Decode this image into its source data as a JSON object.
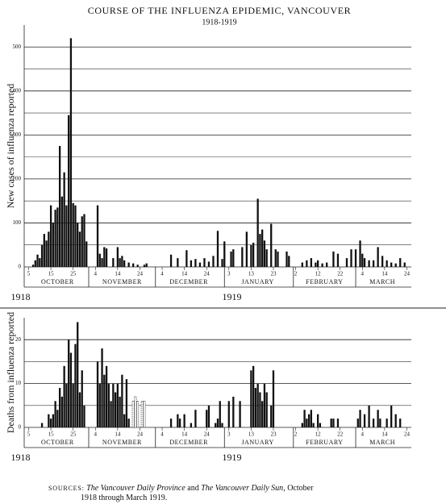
{
  "chart_data": [
    {
      "type": "bar",
      "title": "COURSE OF THE INFLUENZA EPIDEMIC, VANCOUVER",
      "subtitle": "1918-1919",
      "y_label": "New cases of influenza reported",
      "xlim": [
        -2,
        172
      ],
      "xticks": [
        {
          "value": 0,
          "label": "5"
        },
        {
          "value": 10,
          "label": "15"
        },
        {
          "value": 20,
          "label": "25"
        },
        {
          "value": 30,
          "label": "4"
        },
        {
          "value": 40,
          "label": "14"
        },
        {
          "value": 50,
          "label": "24"
        },
        {
          "value": 60,
          "label": "4"
        },
        {
          "value": 70,
          "label": "14"
        },
        {
          "value": 80,
          "label": "24"
        },
        {
          "value": 90,
          "label": "3"
        },
        {
          "value": 100,
          "label": "13"
        },
        {
          "value": 110,
          "label": "23"
        },
        {
          "value": 120,
          "label": "2"
        },
        {
          "value": 130,
          "label": "12"
        },
        {
          "value": 140,
          "label": "22"
        },
        {
          "value": 150,
          "label": "4"
        },
        {
          "value": 160,
          "label": "14"
        },
        {
          "value": 170,
          "label": "24"
        }
      ],
      "month_starts": [
        27,
        57,
        88,
        119,
        147
      ],
      "months": [
        {
          "value": 13,
          "label": "OCTOBER"
        },
        {
          "value": 42,
          "label": "NOVEMBER"
        },
        {
          "value": 72,
          "label": "DECEMBER"
        },
        {
          "value": 103,
          "label": "JANUARY"
        },
        {
          "value": 133,
          "label": "FEBRUARY"
        },
        {
          "value": 159,
          "label": "MARCH"
        }
      ],
      "years": [
        {
          "value": -8,
          "label": "1918"
        },
        {
          "value": 87,
          "label": "1919"
        }
      ],
      "ylim": [
        0,
        550
      ],
      "yticks": [
        0,
        100,
        200,
        300,
        400,
        500
      ],
      "minor_grid": [
        50,
        150,
        250,
        350,
        450
      ],
      "grid": true,
      "series": [
        {
          "color": "#111111",
          "x": [
            2,
            3,
            4,
            5,
            6,
            7,
            8,
            9,
            10,
            11,
            12,
            13,
            14,
            15,
            16,
            17,
            18,
            19,
            20,
            21,
            22,
            23,
            24,
            25,
            26,
            31,
            32,
            33,
            34,
            35,
            38,
            40,
            41,
            42,
            43,
            45,
            47,
            49,
            52,
            53,
            64,
            67,
            71,
            73,
            75,
            77,
            79,
            81,
            83,
            85,
            87,
            88,
            91,
            92,
            96,
            98,
            100,
            101,
            103,
            104,
            105,
            106,
            107,
            109,
            111,
            112,
            116,
            117,
            123,
            125,
            127,
            129,
            130,
            132,
            134,
            137,
            139,
            143,
            145,
            147,
            149,
            150,
            151,
            153,
            155,
            157,
            159,
            161,
            163,
            165,
            167,
            169
          ],
          "values": [
            5,
            15,
            28,
            20,
            50,
            75,
            60,
            80,
            140,
            100,
            130,
            135,
            275,
            160,
            215,
            140,
            345,
            520,
            145,
            140,
            100,
            80,
            115,
            120,
            58,
            140,
            30,
            20,
            45,
            42,
            20,
            45,
            20,
            25,
            15,
            10,
            8,
            5,
            5,
            8,
            28,
            20,
            38,
            15,
            18,
            10,
            20,
            12,
            25,
            82,
            18,
            58,
            35,
            40,
            45,
            80,
            50,
            55,
            155,
            75,
            85,
            60,
            40,
            98,
            40,
            35,
            35,
            25,
            10,
            15,
            20,
            10,
            15,
            8,
            10,
            35,
            30,
            20,
            40,
            40,
            60,
            30,
            20,
            15,
            15,
            45,
            25,
            15,
            10,
            8,
            20,
            10
          ]
        }
      ]
    },
    {
      "type": "bar",
      "y_label": "Deaths from influenza reported",
      "xlim": [
        -2,
        172
      ],
      "xticks": [
        {
          "value": 0,
          "label": "5"
        },
        {
          "value": 10,
          "label": "15"
        },
        {
          "value": 20,
          "label": "25"
        },
        {
          "value": 30,
          "label": "4"
        },
        {
          "value": 40,
          "label": "14"
        },
        {
          "value": 50,
          "label": "24"
        },
        {
          "value": 60,
          "label": "4"
        },
        {
          "value": 70,
          "label": "14"
        },
        {
          "value": 80,
          "label": "24"
        },
        {
          "value": 90,
          "label": "3"
        },
        {
          "value": 100,
          "label": "13"
        },
        {
          "value": 110,
          "label": "23"
        },
        {
          "value": 120,
          "label": "2"
        },
        {
          "value": 130,
          "label": "12"
        },
        {
          "value": 140,
          "label": "22"
        },
        {
          "value": 150,
          "label": "4"
        },
        {
          "value": 160,
          "label": "14"
        },
        {
          "value": 170,
          "label": "24"
        }
      ],
      "month_starts": [
        27,
        57,
        88,
        119,
        147
      ],
      "months": [
        {
          "value": 13,
          "label": "OCTOBER"
        },
        {
          "value": 42,
          "label": "NOVEMBER"
        },
        {
          "value": 72,
          "label": "DECEMBER"
        },
        {
          "value": 103,
          "label": "JANUARY"
        },
        {
          "value": 133,
          "label": "FEBRUARY"
        },
        {
          "value": 159,
          "label": "MARCH"
        }
      ],
      "years": [
        {
          "value": -8,
          "label": "1918"
        },
        {
          "value": 87,
          "label": "1919"
        }
      ],
      "ylim": [
        0,
        25
      ],
      "yticks": [
        0,
        10,
        20
      ],
      "minor_grid": [
        5,
        15
      ],
      "grid": true,
      "series": [
        {
          "color": "#111111",
          "x": [
            6,
            9,
            10,
            11,
            12,
            13,
            14,
            15,
            16,
            17,
            18,
            19,
            20,
            21,
            22,
            23,
            24,
            25,
            31,
            32,
            33,
            34,
            35,
            36,
            37,
            38,
            39,
            40,
            41,
            42,
            43,
            44,
            45,
            64,
            67,
            68,
            70,
            73,
            75,
            80,
            81,
            84,
            85,
            86,
            87,
            90,
            92,
            95,
            100,
            101,
            102,
            103,
            104,
            105,
            106,
            107,
            109,
            110,
            123,
            124,
            125,
            126,
            127,
            128,
            130,
            131,
            136,
            137,
            139,
            148,
            149,
            151,
            153,
            155,
            157,
            158,
            161,
            163,
            165,
            167
          ],
          "values": [
            1,
            3,
            2,
            3,
            6,
            4,
            9,
            7,
            14,
            10,
            20,
            17,
            10,
            19,
            24,
            8,
            13,
            5,
            15,
            10,
            18,
            12,
            14,
            10,
            6,
            10,
            8,
            10,
            7,
            12,
            3,
            11,
            2,
            2,
            3,
            2,
            3,
            1,
            4,
            4,
            5,
            1,
            2,
            6,
            1,
            6,
            7,
            6,
            13,
            14,
            9,
            10,
            8,
            6,
            10,
            8,
            5,
            13,
            1,
            4,
            2,
            3,
            4,
            1,
            3,
            1,
            2,
            2,
            2,
            2,
            4,
            3,
            5,
            2,
            4,
            2,
            2,
            5,
            3,
            2
          ]
        },
        {
          "color": "#111111",
          "dashed": true,
          "x": [
            47,
            48,
            49,
            51,
            52
          ],
          "values": [
            6,
            7,
            6,
            6,
            6
          ]
        }
      ]
    }
  ],
  "source": {
    "label": "SOURCES:",
    "paper1": "The Vancouver Daily Province",
    "and": "and",
    "paper2": "The Vancouver Daily Sun",
    "rest": ", October",
    "line2": "1918 through March 1919."
  }
}
